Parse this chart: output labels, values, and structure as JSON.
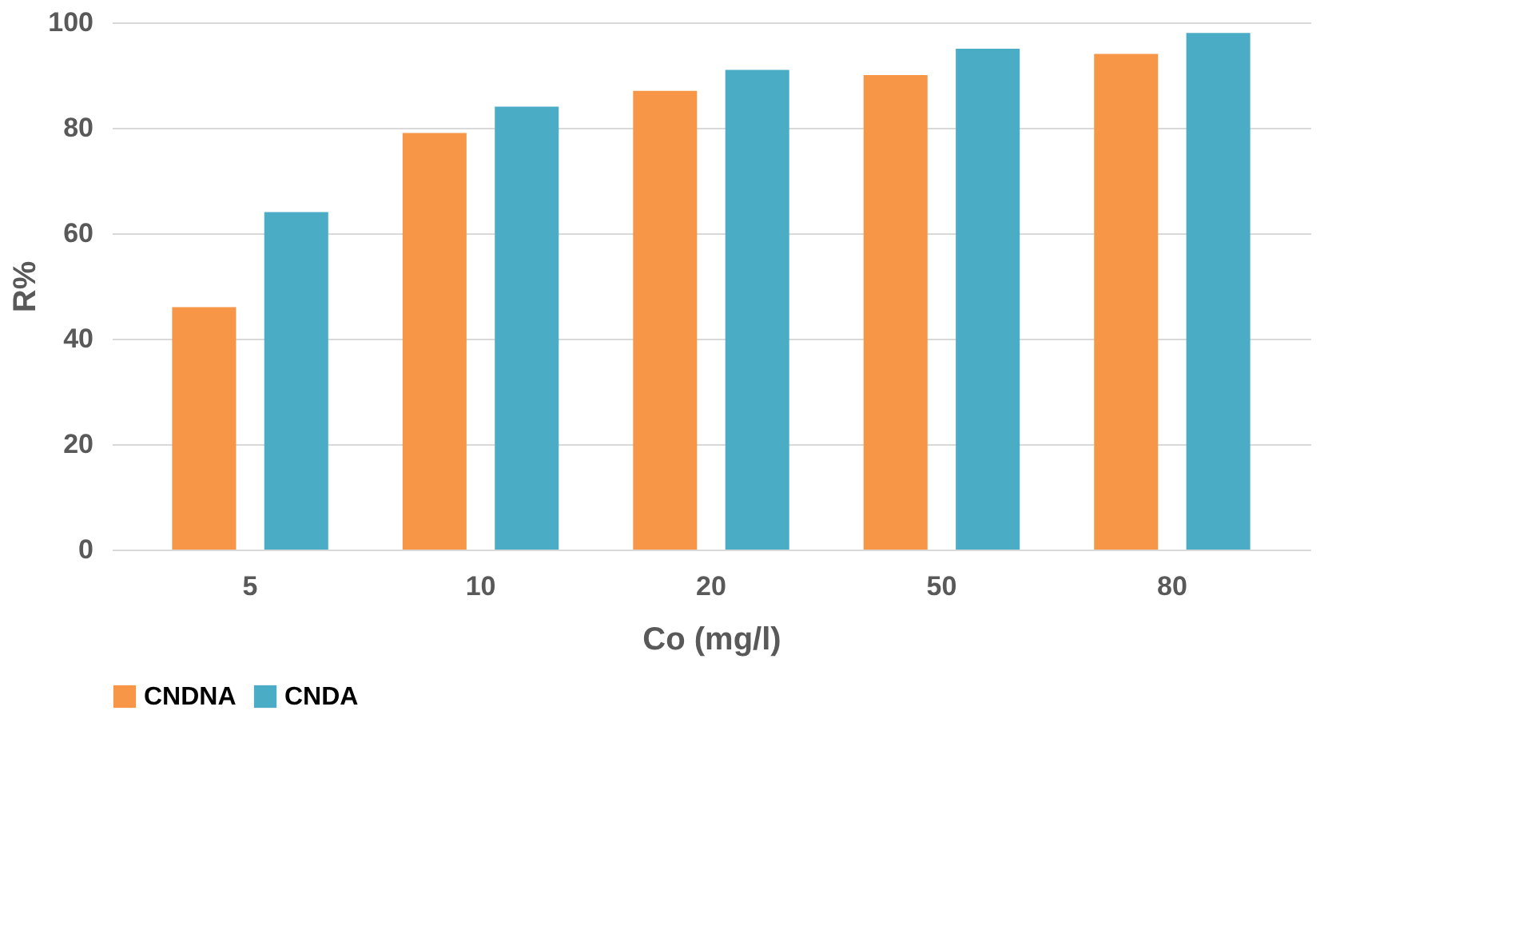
{
  "chart_data": {
    "type": "bar",
    "xlabel": "Co (mg/l)",
    "ylabel": "R%",
    "categories": [
      "5",
      "10",
      "20",
      "50",
      "80"
    ],
    "series": [
      {
        "name": "CNDNA",
        "color": "#f79646",
        "values": [
          46,
          79,
          87,
          90,
          94
        ]
      },
      {
        "name": "CNDA",
        "color": "#4bacc6",
        "values": [
          64,
          84,
          91,
          95,
          98
        ]
      }
    ],
    "ylim": [
      0,
      100
    ],
    "yticks": [
      0,
      20,
      40,
      60,
      80,
      100
    ],
    "grid": "y",
    "legend": "bottom"
  }
}
